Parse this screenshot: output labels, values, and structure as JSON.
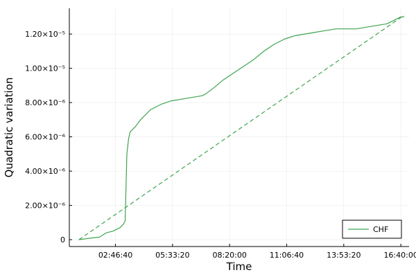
{
  "chart_data": {
    "type": "line",
    "title": "",
    "xlabel": "Time",
    "ylabel": "Quadratic variation",
    "xlim": [
      "00:32:00",
      "17:04:00"
    ],
    "ylim": [
      -4e-07,
      1.35e-05
    ],
    "x_ticks": [
      "02:46:40",
      "05:33:20",
      "08:20:00",
      "11:06:40",
      "13:53:20",
      "16:40:00"
    ],
    "y_ticks": [
      {
        "value": 0,
        "label": "0"
      },
      {
        "value": 2e-06,
        "label": "2.00×10⁻⁶"
      },
      {
        "value": 4e-06,
        "label": "4.00×10⁻⁶"
      },
      {
        "value": 6e-06,
        "label": "6.00×10⁻⁶"
      },
      {
        "value": 8e-06,
        "label": "8.00×10⁻⁶"
      },
      {
        "value": 1e-05,
        "label": "1.00×10⁻⁵"
      },
      {
        "value": 1.2e-05,
        "label": "1.20×10⁻⁵"
      }
    ],
    "grid": true,
    "legend_position": "bottom-right",
    "series": [
      {
        "name": "CHF",
        "color": "#3da44d",
        "style": "solid",
        "x": [
          "01:00:00",
          "01:30:00",
          "02:00:00",
          "02:20:00",
          "02:40:00",
          "03:00:00",
          "03:10:00",
          "03:15:00",
          "03:20:00",
          "03:25:00",
          "03:30:00",
          "03:45:00",
          "04:00:00",
          "04:30:00",
          "05:00:00",
          "05:30:00",
          "06:00:00",
          "06:30:00",
          "07:00:00",
          "07:10:00",
          "07:30:00",
          "08:00:00",
          "08:30:00",
          "09:00:00",
          "09:30:00",
          "10:00:00",
          "10:30:00",
          "11:00:00",
          "11:30:00",
          "12:00:00",
          "12:30:00",
          "13:00:00",
          "13:30:00",
          "14:00:00",
          "14:30:00",
          "15:00:00",
          "15:30:00",
          "16:00:00",
          "16:10:00",
          "16:20:00",
          "16:30:00",
          "16:40:00",
          "16:50:00"
        ],
        "y": [
          0.0,
          8e-08,
          1.5e-07,
          4e-07,
          5e-07,
          7e-07,
          9e-07,
          1.1e-06,
          5e-06,
          5.9e-06,
          6.3e-06,
          6.6e-06,
          7e-06,
          7.6e-06,
          7.9e-06,
          8.1e-06,
          8.2e-06,
          8.3e-06,
          8.4e-06,
          8.5e-06,
          8.8e-06,
          9.3e-06,
          9.7e-06,
          1.01e-05,
          1.05e-05,
          1.1e-05,
          1.14e-05,
          1.17e-05,
          1.19e-05,
          1.2e-05,
          1.21e-05,
          1.22e-05,
          1.23e-05,
          1.23e-05,
          1.23e-05,
          1.24e-05,
          1.25e-05,
          1.26e-05,
          1.27e-05,
          1.28e-05,
          1.29e-05,
          1.3e-05,
          1.3e-05
        ]
      },
      {
        "name": "",
        "color": "#3da44d",
        "style": "dashed",
        "x": [
          "01:00:00",
          "16:50:00"
        ],
        "y": [
          0.0,
          1.31e-05
        ]
      }
    ]
  }
}
